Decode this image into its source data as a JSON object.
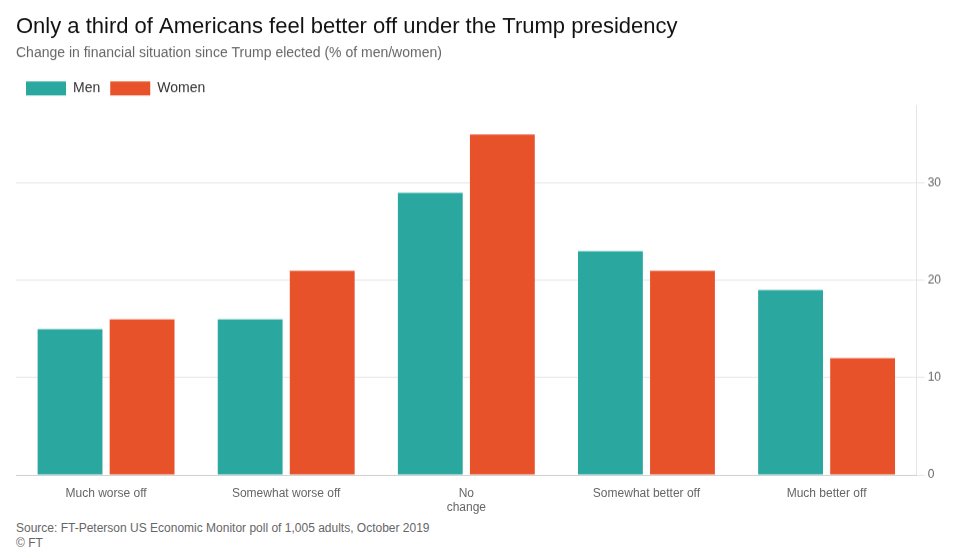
{
  "chart_data": {
    "type": "bar",
    "title": "Only a third of Americans feel better off under the Trump presidency",
    "subtitle": "Change in financial situation since Trump elected (% of men/women)",
    "categories": [
      "Much worse off",
      "Somewhat worse off",
      "No\nchange",
      "Somewhat better off",
      "Much better off"
    ],
    "series": [
      {
        "name": "Men",
        "color": "#2aa8a0",
        "values": [
          15,
          16,
          29,
          23,
          19
        ]
      },
      {
        "name": "Women",
        "color": "#e8522a",
        "values": [
          16,
          21,
          35,
          21,
          12
        ]
      }
    ],
    "ylim": [
      0,
      38
    ],
    "yticks": [
      0,
      10,
      20,
      30
    ],
    "grid": true,
    "legend": "upper left",
    "source": "Source: FT-Peterson US Economic Monitor poll of 1,005 adults, October 2019\n© FT"
  }
}
